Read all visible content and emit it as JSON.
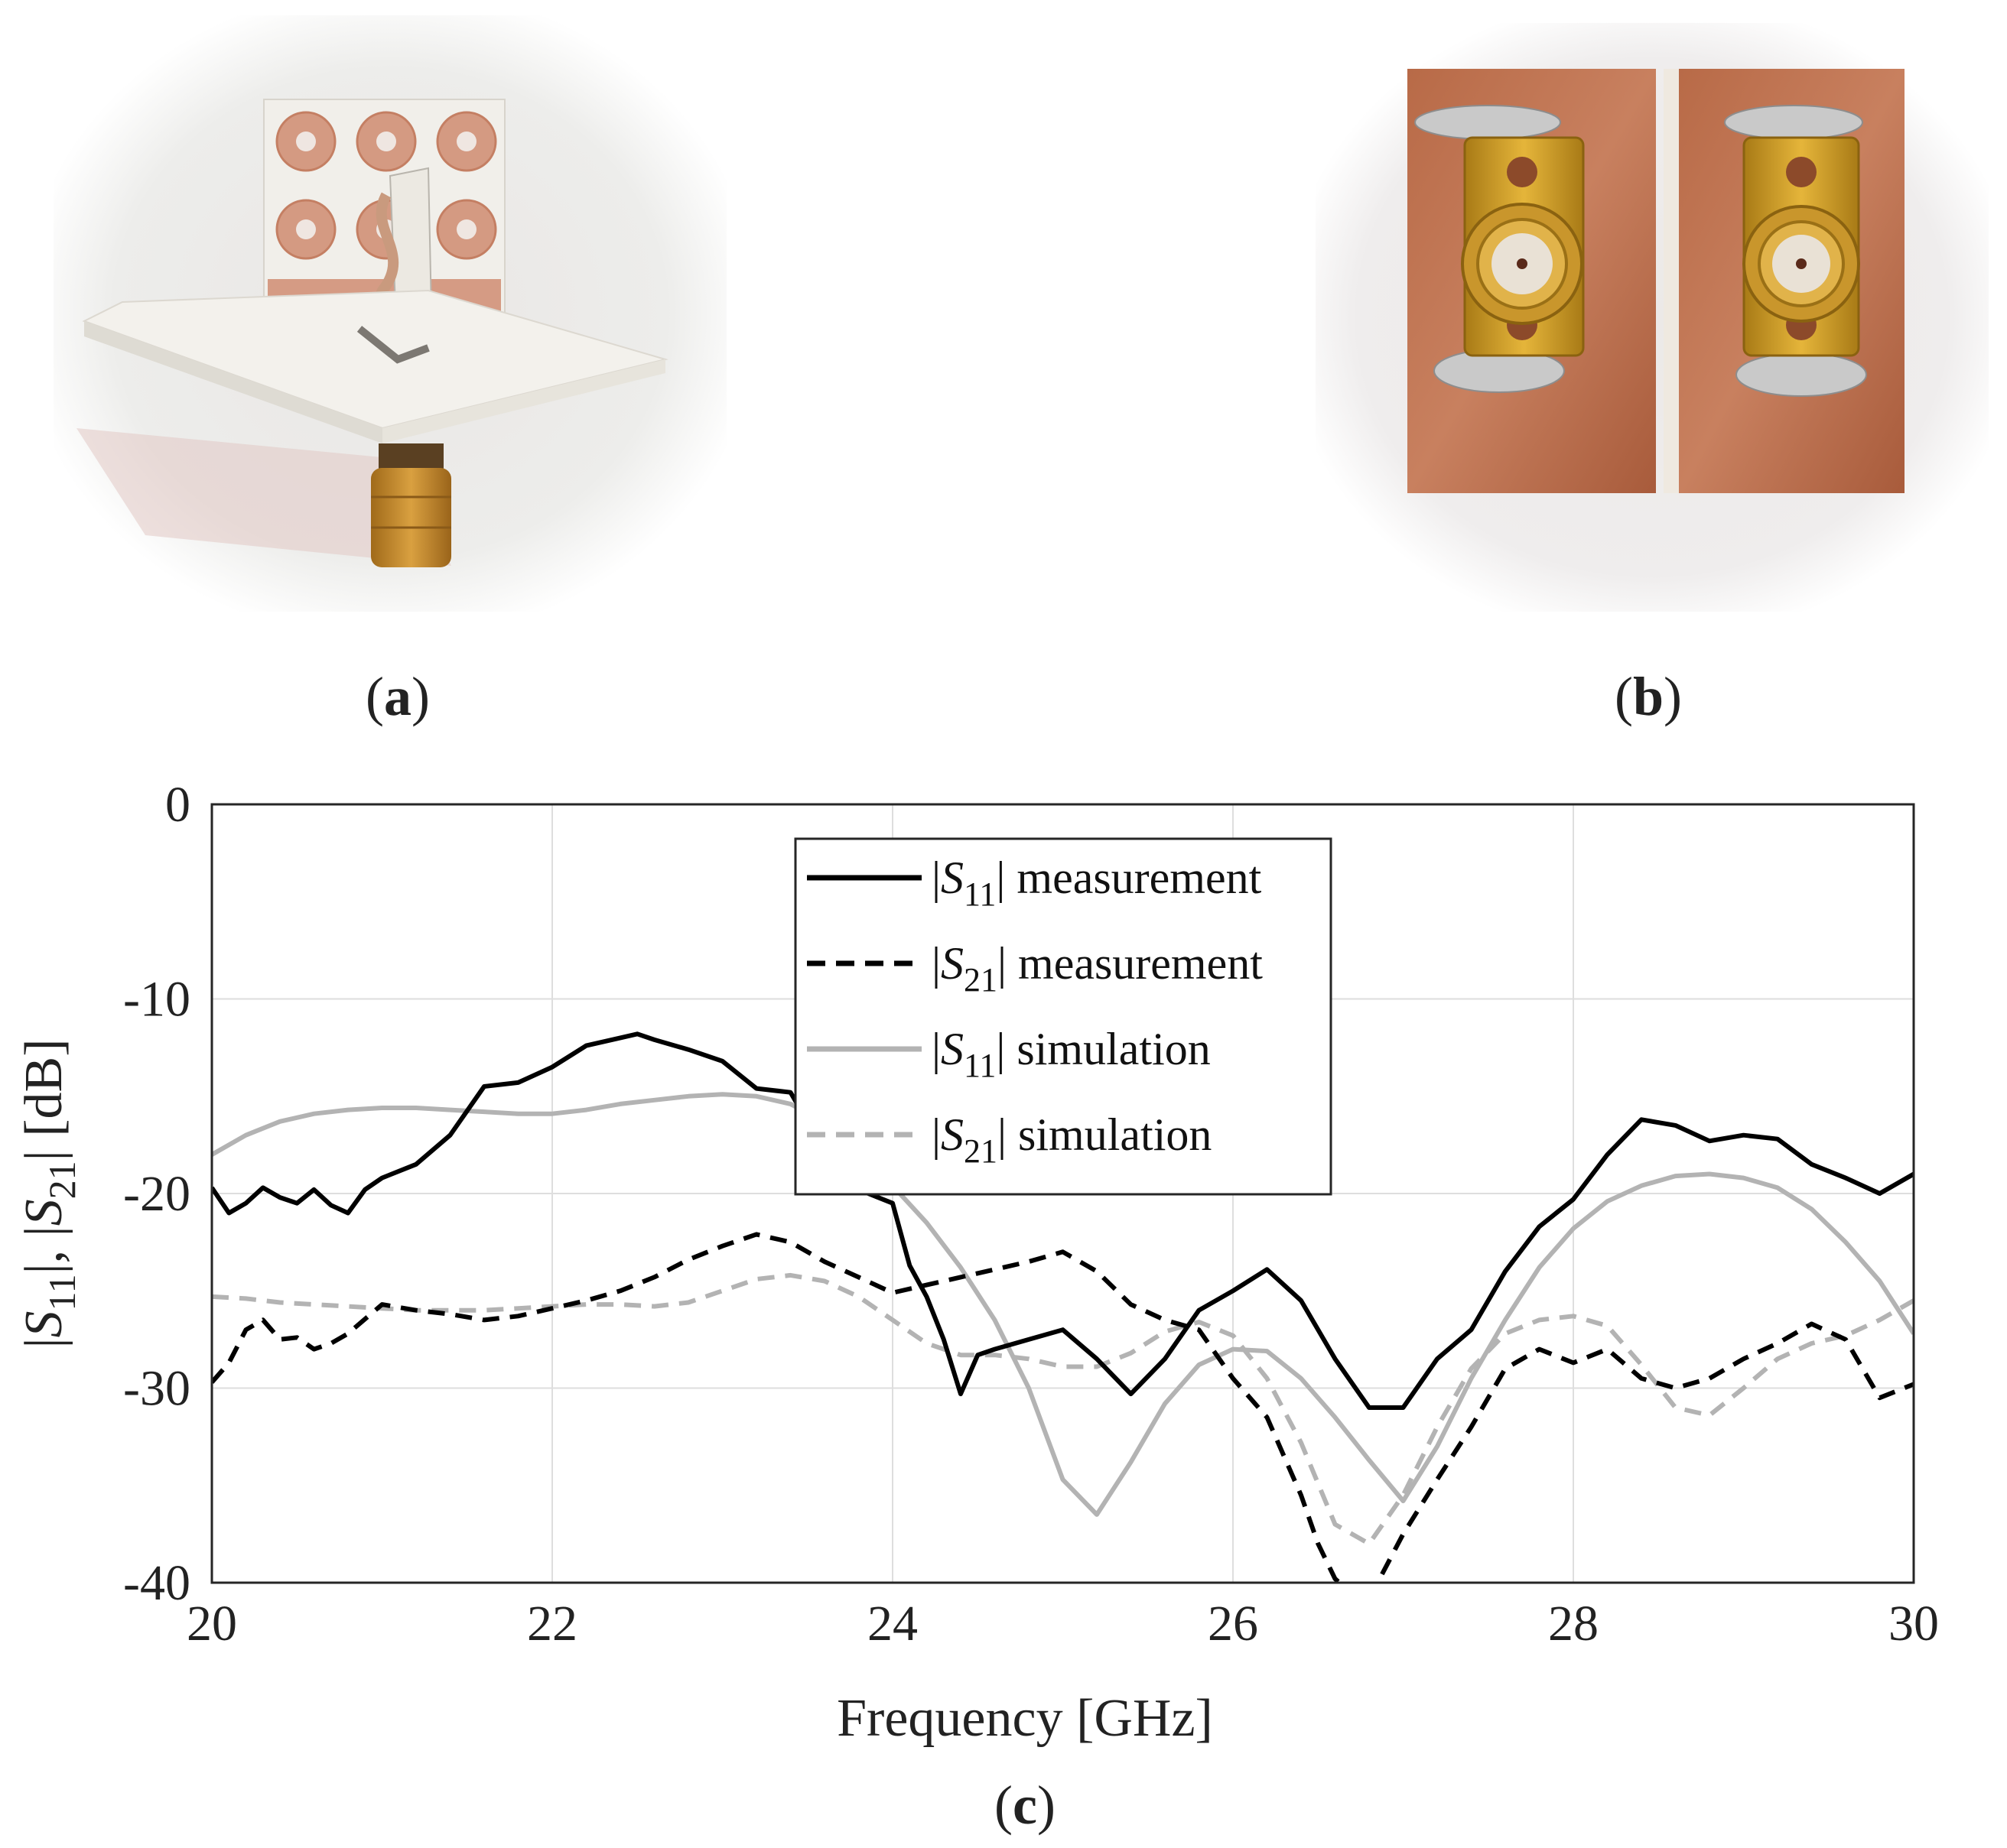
{
  "panels": {
    "a_label": "a",
    "b_label": "b",
    "c_label": "c"
  },
  "photos": {
    "a": "antenna-array-prototype-photo",
    "b": "copper-fixture-with-two-sma-connectors-photo"
  },
  "chart_data": {
    "type": "line",
    "xlabel": "Frequency [GHz]",
    "ylabel_parts": [
      "|",
      "S",
      "11",
      "|, |",
      "S",
      "21",
      "| [dB]"
    ],
    "xlim": [
      20,
      30
    ],
    "ylim": [
      -40,
      0
    ],
    "xticks": [
      20,
      22,
      24,
      26,
      28,
      30
    ],
    "yticks": [
      0,
      -10,
      -20,
      -30,
      -40
    ],
    "grid": true,
    "legend_placement": "top-center",
    "series": [
      {
        "legend_prefix": "|",
        "legend_symbol": "S",
        "legend_sub": "11",
        "legend_suffix": "| measurement",
        "color": "#000000",
        "dash": "solid",
        "x": [
          20.0,
          20.1,
          20.2,
          20.3,
          20.4,
          20.5,
          20.6,
          20.7,
          20.8,
          20.9,
          21.0,
          21.2,
          21.4,
          21.6,
          21.8,
          22.0,
          22.2,
          22.4,
          22.5,
          22.6,
          22.8,
          23.0,
          23.2,
          23.4,
          23.6,
          23.8,
          24.0,
          24.1,
          24.2,
          24.3,
          24.4,
          24.5,
          24.6,
          24.8,
          25.0,
          25.2,
          25.4,
          25.6,
          25.8,
          26.0,
          26.2,
          26.4,
          26.6,
          26.8,
          27.0,
          27.2,
          27.4,
          27.6,
          27.8,
          28.0,
          28.2,
          28.4,
          28.6,
          28.8,
          29.0,
          29.2,
          29.4,
          29.6,
          29.8,
          30.0
        ],
        "y": [
          -19.7,
          -21.0,
          -20.5,
          -19.7,
          -20.2,
          -20.5,
          -19.8,
          -20.6,
          -21.0,
          -19.8,
          -19.2,
          -18.5,
          -17.0,
          -14.5,
          -14.3,
          -13.5,
          -12.4,
          -12.0,
          -11.8,
          -12.1,
          -12.6,
          -13.2,
          -14.6,
          -14.8,
          -17.8,
          -19.8,
          -20.5,
          -23.7,
          -25.3,
          -27.5,
          -30.3,
          -28.3,
          -28.0,
          -27.5,
          -27.0,
          -28.5,
          -30.3,
          -28.5,
          -26.0,
          -25.0,
          -23.9,
          -25.5,
          -28.5,
          -31.0,
          -31.0,
          -28.5,
          -27.0,
          -24.0,
          -21.7,
          -20.3,
          -18.0,
          -16.2,
          -16.5,
          -17.3,
          -17.0,
          -17.2,
          -18.5,
          -19.2,
          -20.0,
          -19.0
        ]
      },
      {
        "legend_prefix": "|",
        "legend_symbol": "S",
        "legend_sub": "21",
        "legend_suffix": "| measurement",
        "color": "#000000",
        "dash": "dashed",
        "x": [
          20.0,
          20.1,
          20.2,
          20.3,
          20.4,
          20.5,
          20.6,
          20.7,
          20.8,
          21.0,
          21.2,
          21.4,
          21.6,
          21.8,
          22.0,
          22.2,
          22.4,
          22.6,
          22.8,
          23.0,
          23.2,
          23.4,
          23.6,
          23.8,
          24.0,
          24.2,
          24.4,
          24.6,
          24.8,
          25.0,
          25.2,
          25.4,
          25.6,
          25.8,
          26.0,
          26.2,
          26.4,
          26.5,
          26.6,
          26.75,
          26.85,
          27.0,
          27.2,
          27.4,
          27.6,
          27.8,
          28.0,
          28.2,
          28.4,
          28.6,
          28.8,
          29.0,
          29.2,
          29.4,
          29.6,
          29.8,
          30.0
        ],
        "y": [
          -29.7,
          -28.7,
          -27.0,
          -26.5,
          -27.5,
          -27.4,
          -28.0,
          -27.7,
          -27.2,
          -25.7,
          -26.0,
          -26.2,
          -26.5,
          -26.3,
          -25.9,
          -25.5,
          -25.0,
          -24.3,
          -23.4,
          -22.7,
          -22.1,
          -22.5,
          -23.5,
          -24.3,
          -25.1,
          -24.7,
          -24.3,
          -23.9,
          -23.5,
          -23.0,
          -24.0,
          -25.7,
          -26.5,
          -27.0,
          -29.5,
          -31.5,
          -35.5,
          -38.0,
          -39.8,
          -41.0,
          -40.0,
          -37.5,
          -34.7,
          -32.0,
          -29.0,
          -28.0,
          -28.7,
          -28.0,
          -29.5,
          -30.0,
          -29.5,
          -28.5,
          -27.7,
          -26.7,
          -27.5,
          -30.5,
          -29.8
        ]
      },
      {
        "legend_prefix": "|",
        "legend_symbol": "S",
        "legend_sub": "11",
        "legend_suffix": "| simulation",
        "color": "#b3b3b3",
        "dash": "solid",
        "x": [
          20.0,
          20.2,
          20.4,
          20.6,
          20.8,
          21.0,
          21.2,
          21.4,
          21.6,
          21.8,
          22.0,
          22.2,
          22.4,
          22.6,
          22.8,
          23.0,
          23.2,
          23.4,
          23.6,
          23.8,
          24.0,
          24.2,
          24.4,
          24.6,
          24.8,
          25.0,
          25.2,
          25.4,
          25.6,
          25.8,
          26.0,
          26.2,
          26.4,
          26.6,
          26.8,
          27.0,
          27.2,
          27.4,
          27.6,
          27.8,
          28.0,
          28.2,
          28.4,
          28.6,
          28.8,
          29.0,
          29.2,
          29.4,
          29.6,
          29.8,
          30.0
        ],
        "y": [
          -18.0,
          -17.0,
          -16.3,
          -15.9,
          -15.7,
          -15.6,
          -15.6,
          -15.7,
          -15.8,
          -15.9,
          -15.9,
          -15.7,
          -15.4,
          -15.2,
          -15.0,
          -14.9,
          -15.0,
          -15.4,
          -16.3,
          -17.8,
          -19.6,
          -21.5,
          -23.8,
          -26.5,
          -30.0,
          -34.7,
          -36.5,
          -33.8,
          -30.8,
          -28.8,
          -28.0,
          -28.1,
          -29.5,
          -31.5,
          -33.7,
          -35.8,
          -33.0,
          -29.5,
          -26.5,
          -23.8,
          -21.8,
          -20.4,
          -19.6,
          -19.1,
          -19.0,
          -19.2,
          -19.7,
          -20.8,
          -22.5,
          -24.5,
          -27.2
        ]
      },
      {
        "legend_prefix": "|",
        "legend_symbol": "S",
        "legend_sub": "21",
        "legend_suffix": "| simulation",
        "color": "#b3b3b3",
        "dash": "dashed",
        "x": [
          20.0,
          20.2,
          20.4,
          20.6,
          20.8,
          21.0,
          21.2,
          21.4,
          21.6,
          21.8,
          22.0,
          22.2,
          22.4,
          22.6,
          22.8,
          23.0,
          23.2,
          23.4,
          23.6,
          23.8,
          24.0,
          24.2,
          24.4,
          24.6,
          24.8,
          25.0,
          25.2,
          25.4,
          25.6,
          25.8,
          26.0,
          26.2,
          26.4,
          26.6,
          26.8,
          27.0,
          27.2,
          27.4,
          27.6,
          27.8,
          28.0,
          28.2,
          28.4,
          28.6,
          28.8,
          29.0,
          29.2,
          29.4,
          29.6,
          29.8,
          30.0
        ],
        "y": [
          -25.3,
          -25.4,
          -25.6,
          -25.7,
          -25.8,
          -25.9,
          -26.0,
          -26.0,
          -26.0,
          -25.9,
          -25.8,
          -25.7,
          -25.7,
          -25.8,
          -25.6,
          -25.0,
          -24.4,
          -24.2,
          -24.5,
          -25.3,
          -26.5,
          -27.7,
          -28.3,
          -28.3,
          -28.5,
          -28.9,
          -28.9,
          -28.2,
          -27.1,
          -26.6,
          -27.3,
          -29.5,
          -32.8,
          -37.0,
          -38.0,
          -35.5,
          -32.0,
          -29.0,
          -27.2,
          -26.5,
          -26.3,
          -26.8,
          -28.8,
          -31.0,
          -31.4,
          -30.0,
          -28.5,
          -27.7,
          -27.3,
          -26.5,
          -25.5
        ]
      }
    ]
  }
}
